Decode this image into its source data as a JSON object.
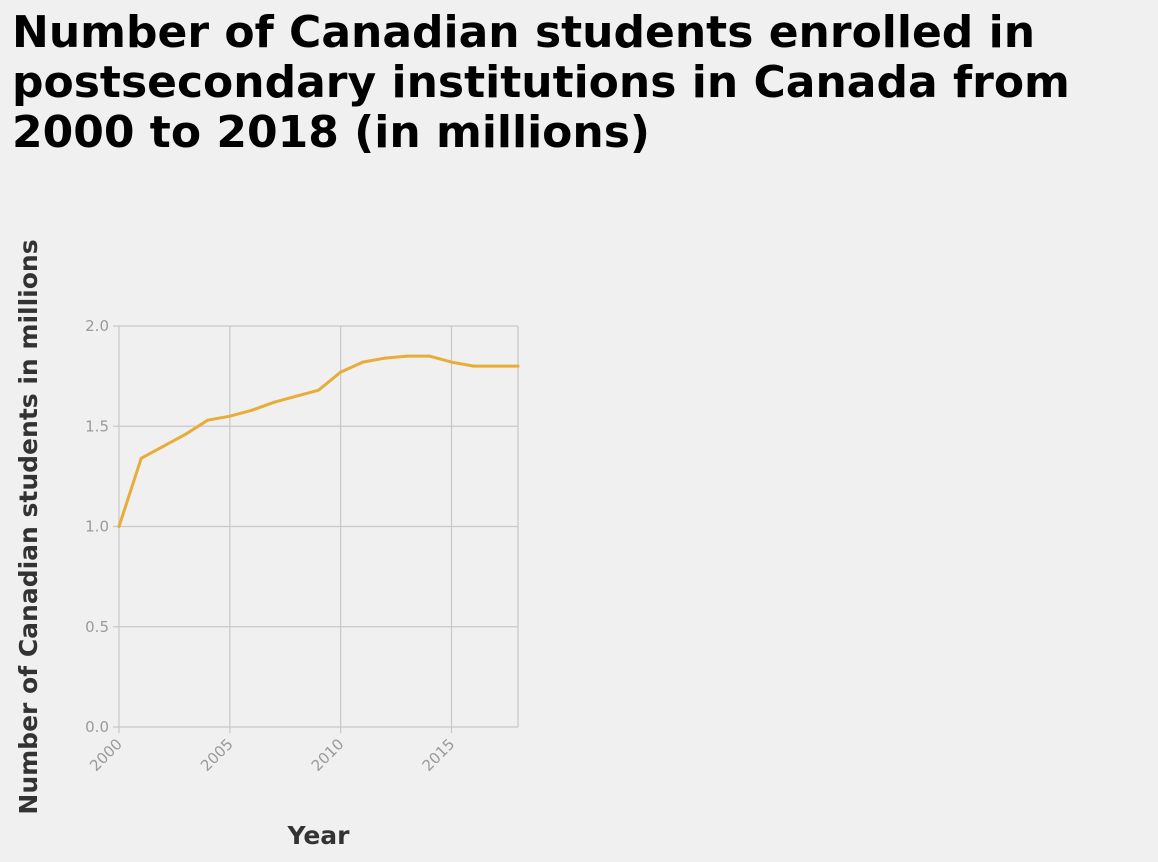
{
  "chart_data": {
    "type": "line",
    "title": "Number of Canadian students enrolled in postsecondary institutions in Canada from 2000 to 2018 (in millions)",
    "xlabel": "Year",
    "ylabel": "Number of Canadian students in millions",
    "x_ticks": [
      "2000",
      "2005",
      "2010",
      "2015"
    ],
    "y_ticks": [
      "0.0",
      "0.5",
      "1.0",
      "1.5",
      "2.0"
    ],
    "xlim": [
      2000,
      2018
    ],
    "ylim": [
      0,
      2.0
    ],
    "grid": true,
    "line_color": "#e8ac3a",
    "series": [
      {
        "x": [
          2000,
          2001,
          2002,
          2003,
          2004,
          2005,
          2006,
          2007,
          2008,
          2009,
          2010,
          2011,
          2012,
          2013,
          2014,
          2015,
          2016,
          2017,
          2018
        ],
        "values": [
          1.0,
          1.34,
          1.4,
          1.46,
          1.53,
          1.55,
          1.58,
          1.62,
          1.65,
          1.68,
          1.77,
          1.82,
          1.84,
          1.85,
          1.85,
          1.82,
          1.8,
          1.8,
          1.8
        ]
      }
    ]
  }
}
